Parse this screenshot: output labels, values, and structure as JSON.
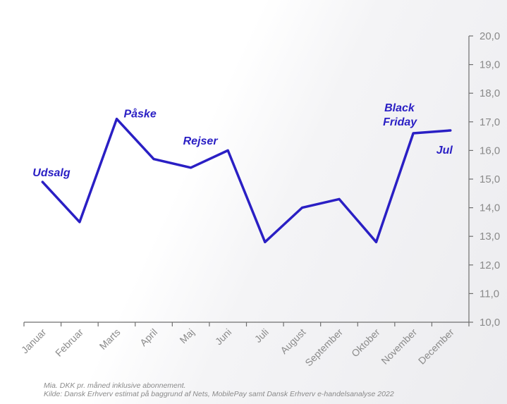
{
  "chart_data": {
    "type": "line",
    "categories": [
      "Januar",
      "Februar",
      "Marts",
      "April",
      "Maj",
      "Juni",
      "Juli",
      "August",
      "September",
      "Oktober",
      "November",
      "December"
    ],
    "series": [
      {
        "values": [
          14.9,
          13.5,
          17.1,
          15.7,
          15.4,
          16.0,
          12.8,
          14.0,
          14.3,
          12.8,
          16.6,
          16.7
        ],
        "color": "#2a1fc4"
      }
    ],
    "ylim": [
      10.0,
      20.0
    ],
    "yticks": [
      "10,0",
      "11,0",
      "12,0",
      "13,0",
      "14,0",
      "15,0",
      "16,0",
      "17,0",
      "18,0",
      "19,0",
      "20,0"
    ],
    "y_axis_side": "right",
    "grid": false,
    "annotations": [
      {
        "text": "Udsalg",
        "category": "Januar"
      },
      {
        "text": "Påske",
        "category": "Marts"
      },
      {
        "text": "Rejser",
        "category": "Maj"
      },
      {
        "text": "Black",
        "category": "November"
      },
      {
        "text": "Friday",
        "category": "November"
      },
      {
        "text": "Jul",
        "category": "December"
      }
    ],
    "title": "",
    "xlabel": "",
    "ylabel": ""
  },
  "footnotes": {
    "line1": "Mia. DKK pr. måned inklusive abonnement.",
    "line2": "Kilde: Dansk Erhverv estimat på baggrund af Nets, MobilePay samt Dansk Erhverv e-handelsanalyse 2022"
  }
}
